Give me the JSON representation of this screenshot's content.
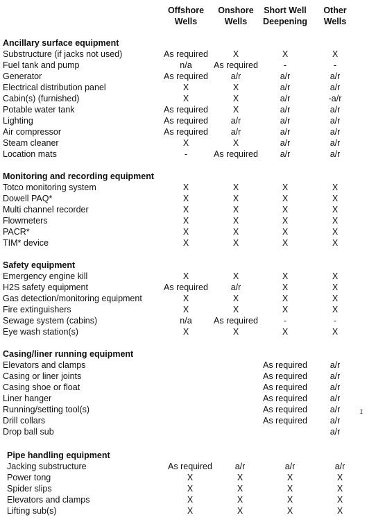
{
  "columns": [
    {
      "line1": "Offshore",
      "line2": "Wells"
    },
    {
      "line1": "Onshore",
      "line2": "Wells"
    },
    {
      "line1": "Short Well",
      "line2": "Deepening"
    },
    {
      "line1": "Other",
      "line2": "Wells"
    }
  ],
  "sections": [
    {
      "title": "Ancillary surface equipment",
      "rows": [
        {
          "label": "Substructure (if jacks not used)",
          "cells": [
            "As required",
            "X",
            "X",
            "X"
          ]
        },
        {
          "label": "Fuel tank and pump",
          "cells": [
            "n/a",
            "As required",
            "-",
            "-"
          ]
        },
        {
          "label": "Generator",
          "cells": [
            "As required",
            "a/r",
            "a/r",
            "a/r"
          ]
        },
        {
          "label": "Electrical distribution panel",
          "cells": [
            "X",
            "X",
            "a/r",
            "a/r"
          ]
        },
        {
          "label": "Cabin(s) (furnished)",
          "cells": [
            "X",
            "X",
            "a/r",
            "-a/r"
          ]
        },
        {
          "label": "Potable water tank",
          "cells": [
            "As required",
            "X",
            "a/r",
            "a/r"
          ]
        },
        {
          "label": "Lighting",
          "cells": [
            "As required",
            "a/r",
            "a/r",
            "a/r"
          ]
        },
        {
          "label": "Air compressor",
          "cells": [
            "As required",
            "a/r",
            "a/r",
            "a/r"
          ]
        },
        {
          "label": "Steam cleaner",
          "cells": [
            "X",
            "X",
            "a/r",
            "a/r"
          ]
        },
        {
          "label": "Location mats",
          "cells": [
            "-",
            "As required",
            "a/r",
            "a/r"
          ]
        }
      ]
    },
    {
      "title": "Monitoring and recording equipment",
      "rows": [
        {
          "label": "Totco monitoring system",
          "cells": [
            "X",
            "X",
            "X",
            "X"
          ]
        },
        {
          "label": "Dowell PAQ*",
          "cells": [
            "X",
            "X",
            "X",
            "X"
          ]
        },
        {
          "label": "Multi channel recorder",
          "cells": [
            "X",
            "X",
            "X",
            "X"
          ]
        },
        {
          "label": "Flowmeters",
          "cells": [
            "X",
            "X",
            "X",
            "X"
          ]
        },
        {
          "label": "PACR*",
          "cells": [
            "X",
            "X",
            "X",
            "X"
          ]
        },
        {
          "label": "TIM* device",
          "cells": [
            "X",
            "X",
            "X",
            "X"
          ]
        }
      ]
    },
    {
      "title": "Safety equipment",
      "rows": [
        {
          "label": "Emergency engine kill",
          "cells": [
            "X",
            "X",
            "X",
            "X"
          ]
        },
        {
          "label": "H2S safety equipment",
          "cells": [
            "As required",
            "a/r",
            "X",
            "X"
          ]
        },
        {
          "label": "Gas detection/monitoring equipment",
          "cells": [
            "X",
            "X",
            "X",
            "X"
          ]
        },
        {
          "label": "Fire extinguishers",
          "cells": [
            "X",
            "X",
            "X",
            "X"
          ]
        },
        {
          "label": "Sewage system (cabins)",
          "cells": [
            "n/a",
            "As required",
            "-",
            "-"
          ]
        },
        {
          "label": "Eye wash station(s)",
          "cells": [
            "X",
            "X",
            "X",
            "X"
          ]
        }
      ]
    },
    {
      "title": "Casing/liner running equipment",
      "rows": [
        {
          "label": "Elevators and clamps",
          "cells": [
            "",
            "",
            "As required",
            "a/r"
          ]
        },
        {
          "label": "Casing or liner joints",
          "cells": [
            "",
            "",
            "As required",
            "a/r"
          ]
        },
        {
          "label": "Casing shoe or float",
          "cells": [
            "",
            "",
            "As required",
            "a/r"
          ]
        },
        {
          "label": "Liner hanger",
          "cells": [
            "",
            "",
            "As required",
            "a/r"
          ]
        },
        {
          "label": "Running/setting tool(s)",
          "cells": [
            "",
            "",
            "As required",
            "a/r"
          ]
        },
        {
          "label": "Drill collars",
          "cells": [
            "",
            "",
            "As required",
            "a/r"
          ]
        },
        {
          "label": "Drop ball sub",
          "cells": [
            "",
            "",
            "",
            "a/r"
          ]
        }
      ]
    },
    {
      "title": "Pipe handling equipment",
      "rows": [
        {
          "label": "Jacking substructure",
          "cells": [
            "As required",
            "a/r",
            "a/r",
            "a/r"
          ]
        },
        {
          "label": "Power tong",
          "cells": [
            "X",
            "X",
            "X",
            "X"
          ]
        },
        {
          "label": "Spider slips",
          "cells": [
            "X",
            "X",
            "X",
            "X"
          ]
        },
        {
          "label": "Elevators and clamps",
          "cells": [
            "X",
            "X",
            "X",
            "X"
          ]
        },
        {
          "label": "Lifting sub(s)",
          "cells": [
            "X",
            "X",
            "X",
            "X"
          ]
        }
      ]
    }
  ],
  "stray_mark": "ɪ"
}
